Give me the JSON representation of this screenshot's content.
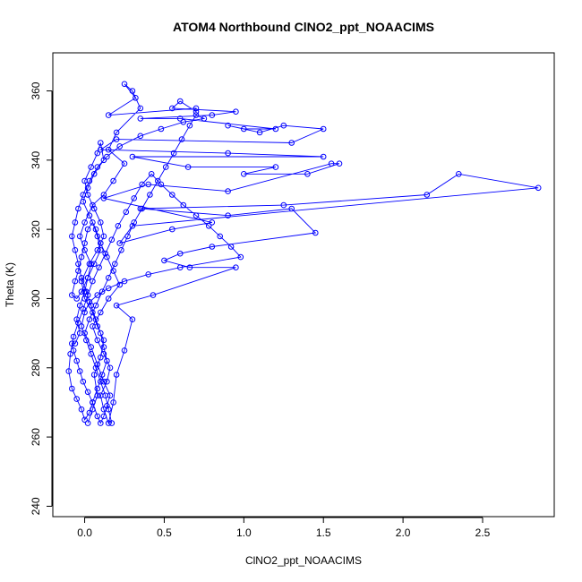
{
  "chart_data": {
    "type": "scatter",
    "title": "ATOM4 Northbound ClNO2_ppt_NOAACIMS",
    "xlabel": "ClNO2_ppt_NOAACIMS",
    "ylabel": "Theta (K)",
    "xlim": [
      -0.2,
      2.95
    ],
    "ylim": [
      237,
      371
    ],
    "xticks": [
      0.0,
      0.5,
      1.0,
      1.5,
      2.0,
      2.5
    ],
    "xtick_labels": [
      "0.0",
      "0.5",
      "1.0",
      "1.5",
      "2.0",
      "2.5"
    ],
    "yticks": [
      240,
      260,
      280,
      300,
      320,
      340,
      360
    ],
    "ytick_labels": [
      "240",
      "260",
      "280",
      "300",
      "320",
      "340",
      "360"
    ],
    "grid": false,
    "marker": "open-circle",
    "connected": true,
    "colors": {
      "series": "#0000ff",
      "axes": "#000000"
    },
    "series": [
      {
        "points": [
          [
            0.02,
            264
          ],
          [
            0.05,
            268
          ],
          [
            0.08,
            272
          ],
          [
            0.06,
            278
          ],
          [
            0.1,
            283
          ],
          [
            0.12,
            288
          ],
          [
            0.08,
            292
          ],
          [
            0.05,
            296
          ],
          [
            0.0,
            300
          ],
          [
            -0.02,
            305
          ],
          [
            0.03,
            310
          ],
          [
            0.08,
            314
          ],
          [
            0.12,
            318
          ],
          [
            0.1,
            322
          ],
          [
            0.06,
            326
          ],
          [
            0.02,
            330
          ],
          [
            0.0,
            334
          ],
          [
            0.04,
            338
          ],
          [
            0.08,
            342
          ],
          [
            0.1,
            345
          ],
          [
            0.12,
            340
          ],
          [
            0.06,
            336
          ],
          [
            0.02,
            332
          ],
          [
            -0.01,
            328
          ],
          [
            0.03,
            324
          ],
          [
            0.07,
            320
          ],
          [
            0.1,
            316
          ],
          [
            0.14,
            312
          ],
          [
            0.18,
            308
          ],
          [
            0.22,
            304
          ],
          [
            0.15,
            300
          ],
          [
            0.1,
            296
          ],
          [
            0.05,
            292
          ],
          [
            0.08,
            288
          ],
          [
            0.12,
            284
          ],
          [
            0.16,
            280
          ],
          [
            0.14,
            276
          ],
          [
            0.1,
            272
          ],
          [
            0.12,
            268
          ],
          [
            0.15,
            264
          ],
          [
            0.18,
            270
          ],
          [
            0.2,
            278
          ],
          [
            0.25,
            285
          ],
          [
            0.3,
            294
          ],
          [
            0.2,
            298
          ],
          [
            0.43,
            301
          ],
          [
            0.95,
            309
          ],
          [
            0.66,
            309
          ],
          [
            0.5,
            311
          ],
          [
            0.6,
            313
          ],
          [
            0.8,
            315
          ],
          [
            1.45,
            319
          ],
          [
            1.3,
            326
          ],
          [
            0.9,
            324
          ],
          [
            0.35,
            326
          ],
          [
            1.25,
            327
          ],
          [
            2.15,
            330
          ],
          [
            2.35,
            336
          ],
          [
            2.85,
            332
          ],
          [
            0.3,
            321
          ],
          [
            0.22,
            316
          ],
          [
            0.55,
            320
          ],
          [
            0.8,
            322
          ],
          [
            0.12,
            329
          ],
          [
            0.4,
            333
          ],
          [
            0.9,
            331
          ],
          [
            1.55,
            339
          ],
          [
            1.6,
            339
          ],
          [
            1.4,
            336
          ],
          [
            1.0,
            336
          ],
          [
            1.2,
            338
          ],
          [
            0.65,
            338
          ],
          [
            0.3,
            341
          ],
          [
            1.5,
            341
          ],
          [
            0.9,
            342
          ],
          [
            0.1,
            343
          ],
          [
            0.2,
            346
          ],
          [
            1.3,
            345
          ],
          [
            1.5,
            349
          ],
          [
            1.25,
            350
          ],
          [
            1.1,
            348
          ],
          [
            0.9,
            350
          ],
          [
            1.0,
            349
          ],
          [
            1.2,
            349
          ],
          [
            0.6,
            352
          ],
          [
            0.35,
            352
          ],
          [
            0.8,
            353
          ],
          [
            0.95,
            354
          ],
          [
            0.55,
            355
          ],
          [
            0.6,
            357
          ],
          [
            0.7,
            354
          ],
          [
            0.7,
            355
          ],
          [
            0.15,
            353
          ],
          [
            0.32,
            358
          ],
          [
            0.25,
            362
          ],
          [
            0.3,
            360
          ],
          [
            0.35,
            355
          ],
          [
            0.2,
            348
          ],
          [
            0.15,
            343
          ],
          [
            0.25,
            339
          ],
          [
            0.18,
            334
          ],
          [
            0.12,
            330
          ],
          [
            0.05,
            327
          ],
          [
            0.0,
            322
          ],
          [
            -0.03,
            318
          ],
          [
            0.0,
            314
          ],
          [
            0.04,
            310
          ],
          [
            0.02,
            306
          ],
          [
            -0.02,
            302
          ],
          [
            -0.05,
            300
          ],
          [
            -0.08,
            301
          ],
          [
            -0.06,
            305
          ],
          [
            -0.04,
            308
          ],
          [
            -0.02,
            312
          ],
          [
            0.0,
            316
          ],
          [
            0.02,
            320
          ],
          [
            0.05,
            322
          ],
          [
            0.08,
            318
          ],
          [
            0.1,
            314
          ],
          [
            0.06,
            310
          ],
          [
            0.02,
            306
          ],
          [
            0.0,
            302
          ],
          [
            -0.03,
            298
          ],
          [
            -0.05,
            294
          ],
          [
            -0.03,
            290
          ],
          [
            -0.06,
            287
          ],
          [
            -0.08,
            287
          ],
          [
            -0.07,
            285
          ],
          [
            -0.05,
            282
          ],
          [
            -0.03,
            279
          ],
          [
            -0.01,
            276
          ],
          [
            0.02,
            273
          ],
          [
            0.05,
            270
          ],
          [
            0.08,
            266
          ],
          [
            0.1,
            264
          ],
          [
            0.12,
            266
          ],
          [
            0.14,
            269
          ],
          [
            0.16,
            272
          ],
          [
            0.12,
            276
          ],
          [
            0.08,
            281
          ],
          [
            0.04,
            286
          ],
          [
            0.0,
            290
          ],
          [
            0.03,
            294
          ],
          [
            0.07,
            298
          ],
          [
            0.11,
            302
          ],
          [
            0.15,
            306
          ],
          [
            0.19,
            310
          ],
          [
            0.23,
            314
          ],
          [
            0.27,
            318
          ],
          [
            0.31,
            322
          ],
          [
            0.36,
            326
          ],
          [
            0.41,
            330
          ],
          [
            0.46,
            334
          ],
          [
            0.51,
            338
          ],
          [
            0.56,
            342
          ],
          [
            0.61,
            346
          ],
          [
            0.66,
            350
          ],
          [
            0.7,
            353
          ],
          [
            0.75,
            352
          ],
          [
            0.62,
            351
          ],
          [
            0.48,
            349
          ],
          [
            0.35,
            347
          ],
          [
            0.22,
            344
          ],
          [
            0.14,
            341
          ],
          [
            0.08,
            338
          ],
          [
            0.03,
            334
          ],
          [
            -0.01,
            330
          ],
          [
            -0.04,
            326
          ],
          [
            -0.06,
            322
          ],
          [
            -0.08,
            318
          ],
          [
            -0.06,
            314
          ],
          [
            -0.04,
            310
          ],
          [
            -0.02,
            306
          ],
          [
            0.01,
            302
          ],
          [
            0.04,
            298
          ],
          [
            0.07,
            294
          ],
          [
            0.1,
            290
          ],
          [
            0.12,
            286
          ],
          [
            0.14,
            282
          ],
          [
            0.11,
            278
          ],
          [
            0.08,
            274
          ],
          [
            0.05,
            270
          ],
          [
            0.03,
            267
          ],
          [
            0.0,
            265
          ],
          [
            -0.02,
            268
          ],
          [
            -0.05,
            271
          ],
          [
            -0.08,
            274
          ],
          [
            -0.1,
            279
          ],
          [
            -0.09,
            284
          ],
          [
            -0.07,
            289
          ],
          [
            -0.04,
            293
          ],
          [
            -0.01,
            297
          ],
          [
            0.02,
            301
          ],
          [
            0.05,
            305
          ],
          [
            0.09,
            309
          ],
          [
            0.13,
            313
          ],
          [
            0.17,
            317
          ],
          [
            0.21,
            321
          ],
          [
            0.26,
            325
          ],
          [
            0.31,
            329
          ],
          [
            0.36,
            333
          ],
          [
            0.42,
            336
          ],
          [
            0.48,
            333
          ],
          [
            0.55,
            330
          ],
          [
            0.62,
            327
          ],
          [
            0.7,
            324
          ],
          [
            0.78,
            321
          ],
          [
            0.85,
            318
          ],
          [
            0.92,
            315
          ],
          [
            0.98,
            312
          ],
          [
            0.6,
            309
          ],
          [
            0.4,
            307
          ],
          [
            0.25,
            305
          ],
          [
            0.15,
            303
          ],
          [
            0.08,
            301
          ],
          [
            0.03,
            299
          ],
          [
            0.0,
            296
          ],
          [
            -0.02,
            292
          ],
          [
            0.01,
            288
          ],
          [
            0.04,
            284
          ],
          [
            0.07,
            280
          ],
          [
            0.1,
            276
          ],
          [
            0.13,
            272
          ],
          [
            0.15,
            268
          ],
          [
            0.17,
            264
          ]
        ]
      }
    ]
  }
}
